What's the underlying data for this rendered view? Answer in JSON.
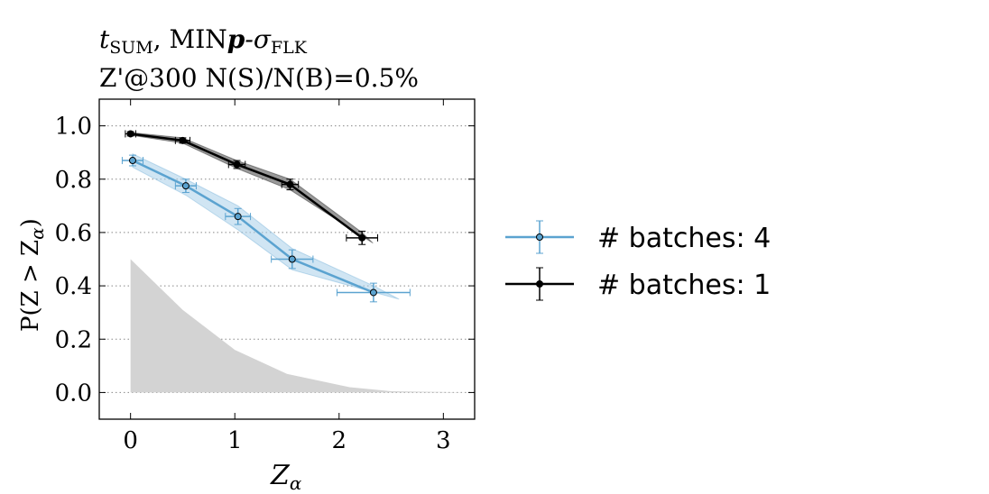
{
  "chart_data": {
    "type": "line",
    "title_line1_prefix": "t",
    "title_line1_sub": "SUM",
    "title_line1_mid": ", MIN",
    "title_line1_p": "p",
    "title_line1_dash": "-σ",
    "title_line1_sub2": "FLK",
    "title_line2": "Z'@300 N(S)/N(B)=0.5%",
    "xlabel_main": "Z",
    "xlabel_sub": "α",
    "ylabel": "P(Z > Z",
    "ylabel_sub": "α",
    "ylabel_end": ")",
    "xlim": [
      -0.3,
      3.3
    ],
    "ylim": [
      -0.1,
      1.1
    ],
    "xticks": [
      0,
      1,
      2,
      3
    ],
    "xtick_labels": [
      "0",
      "1",
      "2",
      "3"
    ],
    "yticks": [
      0.0,
      0.2,
      0.4,
      0.6,
      0.8,
      1.0
    ],
    "ytick_labels": [
      "0.0",
      "0.2",
      "0.4",
      "0.6",
      "0.8",
      "1.0"
    ],
    "reference_band": {
      "x": [
        0,
        0.5,
        1.0,
        1.5,
        2.1,
        2.5,
        3.3
      ],
      "y": [
        0.5,
        0.31,
        0.16,
        0.07,
        0.02,
        0.005,
        0.0
      ]
    },
    "series": [
      {
        "name": "# batches: 4",
        "color": "#5ba3d0",
        "band_color": "#a9d0ea",
        "x": [
          0.02,
          0.53,
          1.03,
          1.55,
          2.33
        ],
        "y": [
          0.87,
          0.775,
          0.66,
          0.5,
          0.375
        ],
        "xerr": [
          0.1,
          0.1,
          0.12,
          0.2,
          0.35
        ],
        "yerr": [
          0.02,
          0.025,
          0.03,
          0.035,
          0.035
        ],
        "band_upper": [
          0.895,
          0.8,
          0.7,
          0.54,
          0.4
        ],
        "band_lower": [
          0.845,
          0.74,
          0.61,
          0.46,
          0.35
        ]
      },
      {
        "name": "# batches: 1",
        "color": "#000000",
        "band_color": "#7f7f7f",
        "x": [
          0.0,
          0.5,
          1.02,
          1.53,
          2.22
        ],
        "y": [
          0.97,
          0.945,
          0.855,
          0.78,
          0.58
        ],
        "xerr": [
          0.05,
          0.07,
          0.08,
          0.08,
          0.15
        ],
        "yerr": [
          0.008,
          0.01,
          0.015,
          0.02,
          0.025
        ],
        "band_upper": [
          0.975,
          0.955,
          0.87,
          0.8,
          0.6
        ],
        "band_lower": [
          0.965,
          0.935,
          0.84,
          0.76,
          0.56
        ]
      }
    ],
    "legend_position": "right"
  }
}
